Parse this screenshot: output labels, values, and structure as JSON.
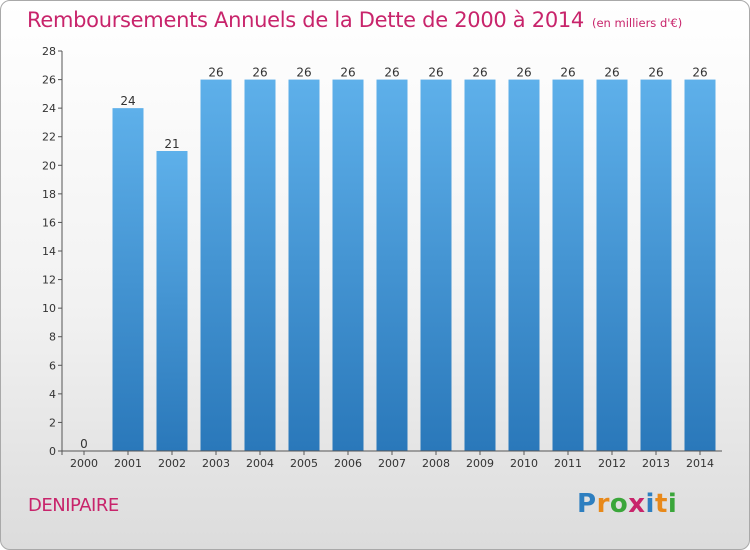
{
  "title": "Remboursements Annuels de la Dette de 2000 à 2014",
  "unit": "(en milliers d'€)",
  "commune": "DENIPAIRE",
  "logo": {
    "text": "Proxiti",
    "letters": [
      "P",
      "r",
      "o",
      "x",
      "i",
      "t",
      "i"
    ],
    "colors": [
      "#2e7fc0",
      "#e8891a",
      "#3aa63a",
      "#c8246b",
      "#2e7fc0",
      "#e8891a",
      "#3aa63a"
    ]
  },
  "colors": {
    "bar": "#3a8fd4",
    "bar_light": "#5eb0ea",
    "bar_dark": "#2a78ba",
    "accent": "#c8246b"
  },
  "chart_data": {
    "type": "bar",
    "categories": [
      "2000",
      "2001",
      "2002",
      "2003",
      "2004",
      "2005",
      "2006",
      "2007",
      "2008",
      "2009",
      "2010",
      "2011",
      "2012",
      "2013",
      "2014"
    ],
    "values": [
      0,
      24,
      21,
      26,
      26,
      26,
      26,
      26,
      26,
      26,
      26,
      26,
      26,
      26,
      26
    ],
    "ylim": [
      0,
      28
    ],
    "yticks": [
      0,
      2,
      4,
      6,
      8,
      10,
      12,
      14,
      16,
      18,
      20,
      22,
      24,
      26,
      28
    ],
    "grid": false,
    "data_labels": true
  }
}
